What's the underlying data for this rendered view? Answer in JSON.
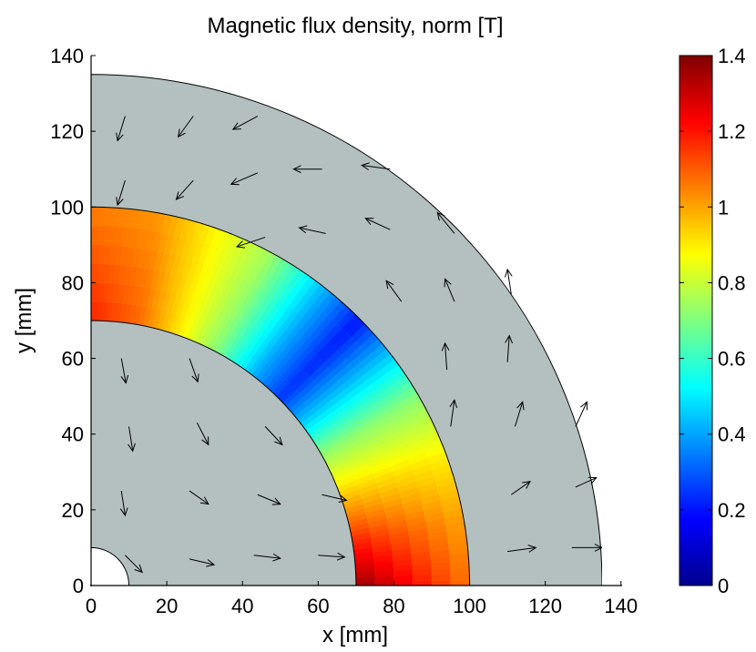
{
  "chart_data": {
    "type": "heatmap",
    "title": "Magnetic flux density, norm [T]",
    "xlabel": "x [mm]",
    "ylabel": "y [mm]",
    "xlim": [
      0,
      140
    ],
    "ylim": [
      0,
      140
    ],
    "x_ticks": [
      "0",
      "20",
      "40",
      "60",
      "80",
      "100",
      "120",
      "140"
    ],
    "y_ticks": [
      "0",
      "20",
      "40",
      "60",
      "80",
      "100",
      "120",
      "140"
    ],
    "colorbar": {
      "range": [
        0,
        1.4
      ],
      "ticks": [
        "0",
        "0.2",
        "0.4",
        "0.6",
        "0.8",
        "1",
        "1.2",
        "1.4"
      ],
      "colormap": "jet"
    },
    "regions": {
      "hole_radius_mm": 10,
      "inner_core_radius_mm": 70,
      "field_ring": {
        "inner_radius_mm": 70,
        "outer_radius_mm": 100
      },
      "outer_shell_outer_radius_mm": 135
    },
    "field_ring_samples": [
      {
        "angle_deg": 0,
        "inner_T": 1.38,
        "outer_T": 1.06
      },
      {
        "angle_deg": 10,
        "inner_T": 1.18,
        "outer_T": 1.0
      },
      {
        "angle_deg": 20,
        "inner_T": 0.95,
        "outer_T": 0.9
      },
      {
        "angle_deg": 30,
        "inner_T": 0.72,
        "outer_T": 0.72
      },
      {
        "angle_deg": 38,
        "inner_T": 0.45,
        "outer_T": 0.45
      },
      {
        "angle_deg": 45,
        "inner_T": 0.25,
        "outer_T": 0.2
      },
      {
        "angle_deg": 52,
        "inner_T": 0.4,
        "outer_T": 0.42
      },
      {
        "angle_deg": 62,
        "inner_T": 0.7,
        "outer_T": 0.75
      },
      {
        "angle_deg": 72,
        "inner_T": 0.92,
        "outer_T": 0.9
      },
      {
        "angle_deg": 80,
        "inner_T": 1.08,
        "outer_T": 1.02
      },
      {
        "angle_deg": 90,
        "inner_T": 1.18,
        "outer_T": 1.05
      }
    ],
    "arrows_inner_core": [
      {
        "x": 8,
        "y": 60,
        "dx": 1.2,
        "dy": -6.5
      },
      {
        "x": 26,
        "y": 60,
        "dx": 2.2,
        "dy": -6.2
      },
      {
        "x": 10,
        "y": 42,
        "dx": 1.0,
        "dy": -6.5
      },
      {
        "x": 28,
        "y": 43,
        "dx": 3.0,
        "dy": -5.8
      },
      {
        "x": 46,
        "y": 42,
        "dx": 4.5,
        "dy": -4.8
      },
      {
        "x": 8,
        "y": 25,
        "dx": 1.0,
        "dy": -6.5
      },
      {
        "x": 26,
        "y": 25,
        "dx": 5.0,
        "dy": -3.5
      },
      {
        "x": 44,
        "y": 24,
        "dx": 6.0,
        "dy": -2.5
      },
      {
        "x": 61,
        "y": 24,
        "dx": 6.5,
        "dy": -1.5
      },
      {
        "x": 9,
        "y": 8,
        "dx": 4.5,
        "dy": -4.5
      },
      {
        "x": 26,
        "y": 7,
        "dx": 6.5,
        "dy": -1.5
      },
      {
        "x": 43,
        "y": 8,
        "dx": 7.0,
        "dy": -0.8
      },
      {
        "x": 60,
        "y": 8,
        "dx": 7.0,
        "dy": -0.5
      }
    ],
    "arrows_outer_shell": [
      {
        "x": 9,
        "y": 124,
        "dx": -2.0,
        "dy": -6.5
      },
      {
        "x": 27,
        "y": 124,
        "dx": -4.0,
        "dy": -5.5
      },
      {
        "x": 44,
        "y": 124,
        "dx": -6.5,
        "dy": -3.5
      },
      {
        "x": 9,
        "y": 107,
        "dx": -2.0,
        "dy": -6.5
      },
      {
        "x": 27,
        "y": 107,
        "dx": -4.5,
        "dy": -5.0
      },
      {
        "x": 44,
        "y": 109,
        "dx": -7.0,
        "dy": -3.0
      },
      {
        "x": 61,
        "y": 110,
        "dx": -7.5,
        "dy": 0.0
      },
      {
        "x": 79,
        "y": 110,
        "dx": -7.5,
        "dy": 1.0
      },
      {
        "x": 46,
        "y": 92,
        "dx": -7.5,
        "dy": -2.5
      },
      {
        "x": 62,
        "y": 93,
        "dx": -7.0,
        "dy": 1.5
      },
      {
        "x": 79,
        "y": 94,
        "dx": -6.5,
        "dy": 3.0
      },
      {
        "x": 96,
        "y": 93,
        "dx": -4.5,
        "dy": 5.5
      },
      {
        "x": 82,
        "y": 75,
        "dx": -4.0,
        "dy": 5.5
      },
      {
        "x": 96,
        "y": 75,
        "dx": -2.5,
        "dy": 6.0
      },
      {
        "x": 111,
        "y": 77,
        "dx": -1.0,
        "dy": 6.5
      },
      {
        "x": 94,
        "y": 57,
        "dx": -0.5,
        "dy": 7.0
      },
      {
        "x": 110,
        "y": 59,
        "dx": 0.5,
        "dy": 7.0
      },
      {
        "x": 95,
        "y": 42,
        "dx": 1.0,
        "dy": 7.0
      },
      {
        "x": 112,
        "y": 42,
        "dx": 2.0,
        "dy": 6.5
      },
      {
        "x": 128,
        "y": 42,
        "dx": 3.0,
        "dy": 6.5
      },
      {
        "x": 111,
        "y": 24,
        "dx": 5.0,
        "dy": 3.5
      },
      {
        "x": 128,
        "y": 26,
        "dx": 5.5,
        "dy": 2.5
      },
      {
        "x": 110,
        "y": 9,
        "dx": 7.5,
        "dy": 1.0
      },
      {
        "x": 127,
        "y": 10,
        "dx": 8.0,
        "dy": 0.0
      }
    ]
  }
}
